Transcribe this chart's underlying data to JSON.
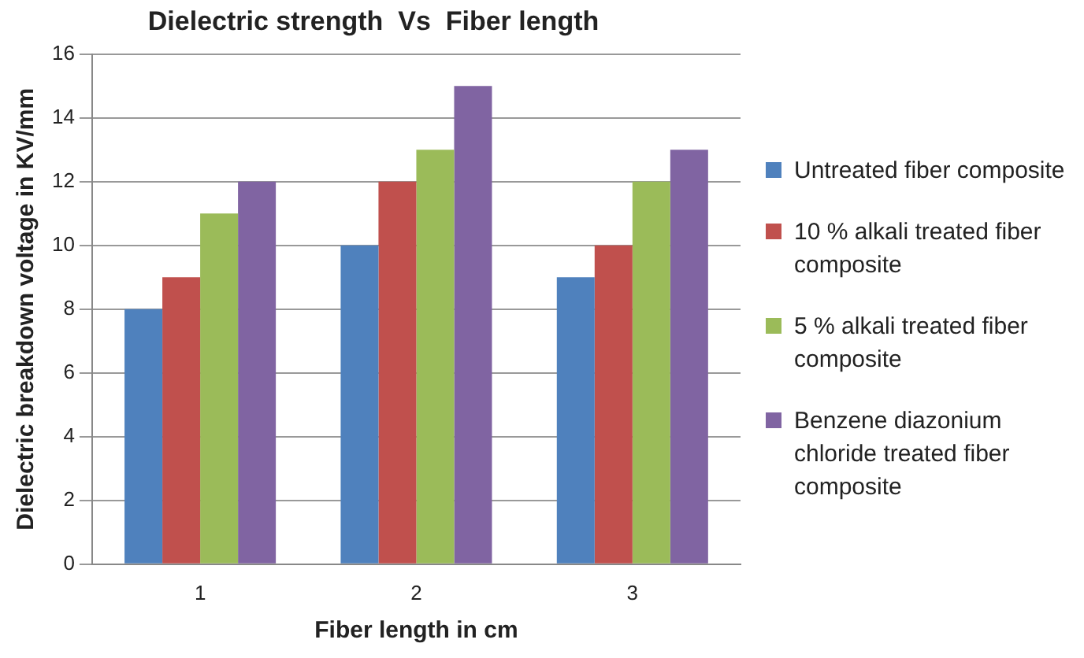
{
  "chart_data": {
    "type": "bar",
    "title": "Dielectric strength  Vs  Fiber length",
    "xlabel": "Fiber length in cm",
    "ylabel": "Dielectric breakdown voltage in KV/mm",
    "categories": [
      "1",
      "2",
      "3"
    ],
    "series": [
      {
        "name": "Untreated fiber composite",
        "color": "#4f81bd",
        "values": [
          8,
          10,
          9
        ]
      },
      {
        "name": "10 % alkali treated fiber composite",
        "color": "#c0504d",
        "values": [
          9,
          12,
          10
        ]
      },
      {
        "name": "5 % alkali treated fiber composite",
        "color": "#9bbb59",
        "values": [
          11,
          13,
          12
        ]
      },
      {
        "name": "Benzene diazonium chloride treated fiber composite",
        "color": "#8064a2",
        "values": [
          12,
          15,
          13
        ]
      }
    ],
    "ylim": [
      0,
      16
    ],
    "yticks": [
      0,
      2,
      4,
      6,
      8,
      10,
      12,
      14,
      16
    ],
    "grid": "y",
    "legend": "right"
  }
}
